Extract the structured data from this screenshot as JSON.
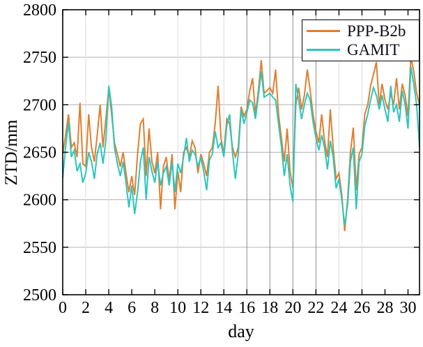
{
  "chart_data": {
    "type": "line",
    "title": "",
    "xlabel": "day",
    "ylabel": "ZTD/mm",
    "xlim": [
      0,
      31
    ],
    "ylim": [
      2500,
      2800
    ],
    "xtick_values": [
      0,
      2,
      4,
      6,
      8,
      10,
      12,
      14,
      16,
      18,
      20,
      22,
      24,
      26,
      28,
      30
    ],
    "xtick_labels": [
      "0",
      "2",
      "4",
      "6",
      "8",
      "10",
      "12",
      "14",
      "16",
      "18",
      "20",
      "22",
      "24",
      "26",
      "28",
      "30"
    ],
    "ytick_values": [
      2500,
      2550,
      2600,
      2650,
      2700,
      2750,
      2800
    ],
    "ytick_labels": [
      "2500",
      "2550",
      "2600",
      "2650",
      "2700",
      "2750",
      "2800"
    ],
    "grid": {
      "horizontal_at": [
        2550,
        2600,
        2650,
        2700,
        2750
      ],
      "vertical_light_at": [
        2,
        4,
        10,
        12,
        14,
        24,
        26
      ],
      "vertical_dark_at": [
        16,
        18,
        20,
        22
      ]
    },
    "colors": {
      "background": "#ffffff",
      "axis": "#000000",
      "horizontal_grid": "#b3b3b3",
      "vertical_grid_light": "#dcdcdc",
      "vertical_grid_dark": "#8c8c8c"
    },
    "legend_position": "top-right",
    "x_start_day": 0,
    "x_step_days": 0.25,
    "series": [
      {
        "name": "PPP-B2b",
        "color": "#e07e2e",
        "values": [
          2648,
          2668,
          2690,
          2655,
          2660,
          2645,
          2702,
          2638,
          2635,
          2690,
          2655,
          2640,
          2668,
          2700,
          2655,
          2685,
          2718,
          2690,
          2660,
          2648,
          2635,
          2650,
          2628,
          2608,
          2625,
          2605,
          2648,
          2680,
          2685,
          2625,
          2675,
          2640,
          2628,
          2650,
          2590,
          2635,
          2645,
          2620,
          2648,
          2590,
          2630,
          2608,
          2650,
          2655,
          2645,
          2662,
          2655,
          2628,
          2648,
          2638,
          2625,
          2650,
          2655,
          2680,
          2720,
          2665,
          2648,
          2685,
          2680,
          2655,
          2645,
          2655,
          2698,
          2688,
          2695,
          2715,
          2728,
          2690,
          2715,
          2747,
          2712,
          2715,
          2718,
          2712,
          2737,
          2690,
          2665,
          2640,
          2675,
          2630,
          2612,
          2700,
          2718,
          2695,
          2710,
          2737,
          2715,
          2690,
          2672,
          2660,
          2690,
          2662,
          2645,
          2695,
          2655,
          2622,
          2628,
          2605,
          2567,
          2600,
          2650,
          2676,
          2610,
          2648,
          2655,
          2690,
          2700,
          2720,
          2732,
          2745,
          2700,
          2722,
          2705,
          2695,
          2712,
          2700,
          2728,
          2695,
          2722,
          2710,
          2688,
          2750,
          2735,
          2712,
          2700
        ]
      },
      {
        "name": "GAMIT",
        "color": "#2ac6bd",
        "values": [
          2623,
          2655,
          2682,
          2645,
          2652,
          2630,
          2638,
          2618,
          2628,
          2650,
          2640,
          2622,
          2648,
          2660,
          2638,
          2662,
          2720,
          2698,
          2655,
          2638,
          2625,
          2640,
          2618,
          2592,
          2615,
          2585,
          2608,
          2640,
          2655,
          2600,
          2645,
          2630,
          2618,
          2640,
          2615,
          2628,
          2635,
          2615,
          2640,
          2608,
          2638,
          2628,
          2645,
          2665,
          2640,
          2652,
          2648,
          2635,
          2645,
          2630,
          2610,
          2642,
          2648,
          2672,
          2655,
          2660,
          2645,
          2678,
          2690,
          2650,
          2622,
          2648,
          2695,
          2680,
          2692,
          2705,
          2702,
          2685,
          2710,
          2735,
          2708,
          2710,
          2712,
          2708,
          2705,
          2680,
          2656,
          2625,
          2648,
          2615,
          2598,
          2722,
          2705,
          2685,
          2700,
          2712,
          2705,
          2682,
          2665,
          2652,
          2668,
          2655,
          2632,
          2662,
          2645,
          2612,
          2622,
          2600,
          2573,
          2595,
          2640,
          2655,
          2590,
          2640,
          2648,
          2678,
          2690,
          2705,
          2718,
          2710,
          2695,
          2710,
          2695,
          2682,
          2720,
          2692,
          2700,
          2682,
          2715,
          2700,
          2675,
          2740,
          2722,
          2700,
          2655
        ]
      }
    ]
  }
}
